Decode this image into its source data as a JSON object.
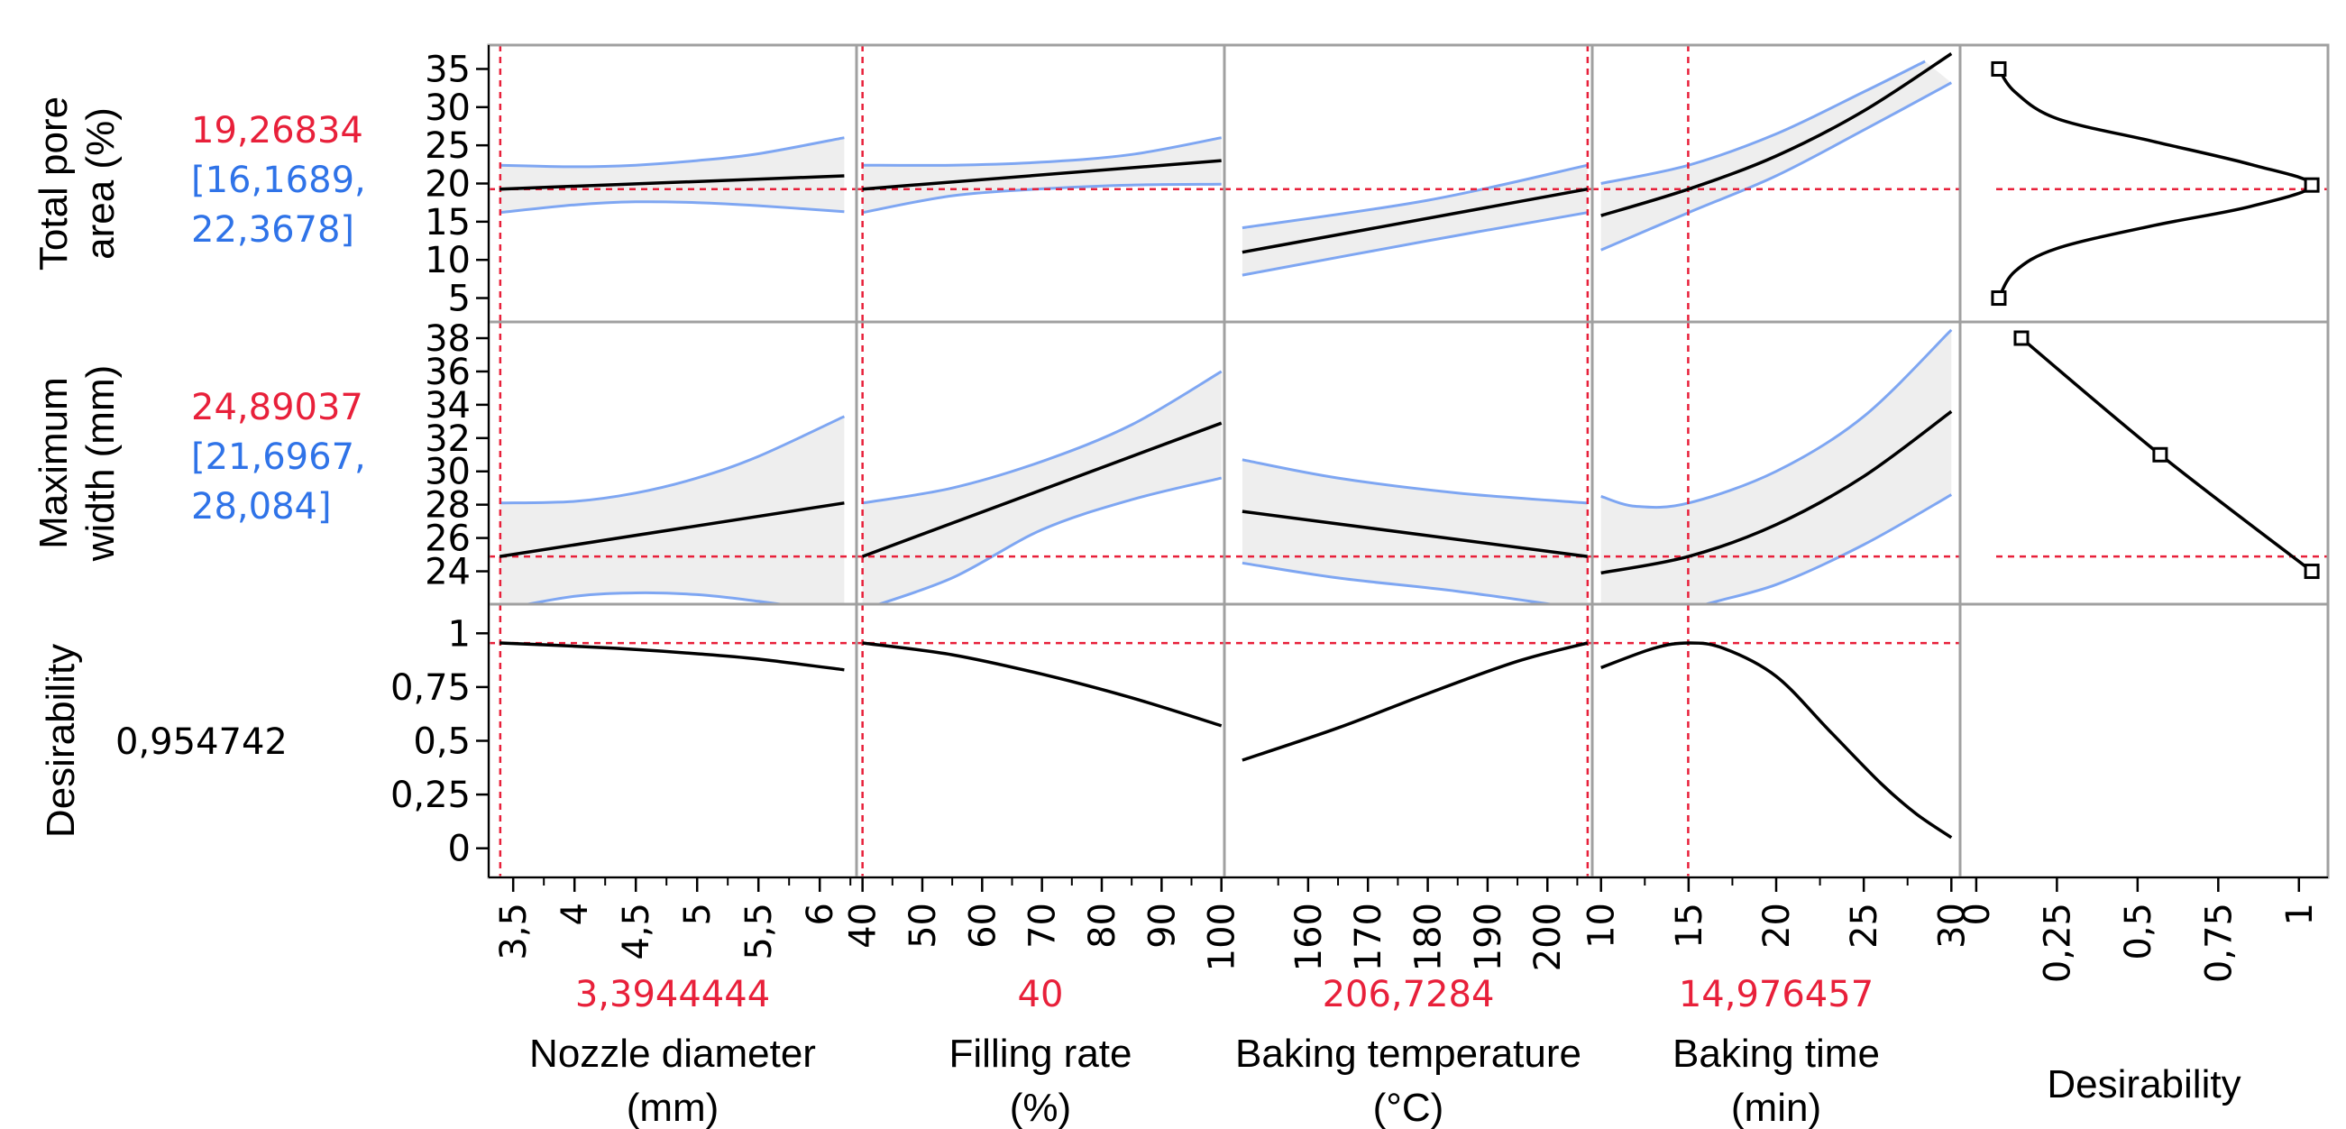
{
  "chart_data": {
    "type": "prediction_profiler",
    "colors": {
      "current_value": "#e8203a",
      "confidence": "#2f73e8",
      "band_line": "#7ea6f2",
      "band_fill": "#eeeeee",
      "grid_border": "#a0a0a0",
      "curve": "#000000"
    },
    "factors": [
      {
        "name_lines": [
          "Nozzle diameter",
          "(mm)"
        ],
        "current_label": "3,3944444",
        "current": 3.3944444,
        "range": [
          3.3,
          6.3
        ],
        "tick_values": [
          3.5,
          4,
          4.5,
          5,
          5.5,
          6
        ],
        "tick_labels": [
          "3,5",
          "4",
          "4,5",
          "5",
          "5,5",
          "6"
        ],
        "minor_ticks": [
          3.75,
          4.25,
          4.75,
          5.25,
          5.75,
          6.25
        ]
      },
      {
        "name_lines": [
          "Filling rate",
          "(%)"
        ],
        "current_label": "40",
        "current": 40,
        "range": [
          39,
          100.5
        ],
        "tick_values": [
          40,
          50,
          60,
          70,
          80,
          90,
          100
        ],
        "tick_labels": [
          "40",
          "50",
          "60",
          "70",
          "80",
          "90",
          "100"
        ],
        "minor_ticks": [
          45,
          55,
          65,
          75,
          85,
          95
        ]
      },
      {
        "name_lines": [
          "Baking temperature",
          "(°C)"
        ],
        "current_label": "206,7284",
        "current": 206.7284,
        "range": [
          146,
          207.5
        ],
        "tick_values": [
          160,
          170,
          180,
          190,
          200
        ],
        "tick_labels": [
          "160",
          "170",
          "180",
          "190",
          "200"
        ],
        "minor_ticks": [
          155,
          165,
          175,
          185,
          195,
          205
        ]
      },
      {
        "name_lines": [
          "Baking time",
          "(min)"
        ],
        "current_label": "14,976457",
        "current": 14.976457,
        "range": [
          9.5,
          30.5
        ],
        "tick_values": [
          10,
          15,
          20,
          25,
          30
        ],
        "tick_labels": [
          "10",
          "15",
          "20",
          "25",
          "30"
        ],
        "minor_ticks": [
          12.5,
          17.5,
          22.5,
          27.5
        ]
      }
    ],
    "responses": [
      {
        "name_lines": [
          "Total pore",
          "area (%)"
        ],
        "value_label": "19,26834",
        "ci_lines": [
          "[16,1689,",
          "22,3678]"
        ],
        "value": 19.26834,
        "ylim": [
          4,
          36
        ],
        "tick_values": [
          5,
          10,
          15,
          20,
          25,
          30,
          35
        ],
        "tick_labels": [
          "5",
          "10",
          "15",
          "20",
          "25",
          "30",
          "35"
        ],
        "traces": [
          {
            "pred": [
              [
                3.39,
                19.27
              ],
              [
                6.2,
                21.0
              ]
            ],
            "upper": [
              [
                3.39,
                22.4
              ],
              [
                4.0,
                22.2
              ],
              [
                4.5,
                22.4
              ],
              [
                5.0,
                23.0
              ],
              [
                5.5,
                23.9
              ],
              [
                6.2,
                26.0
              ]
            ],
            "lower": [
              [
                3.39,
                16.2
              ],
              [
                4.0,
                17.2
              ],
              [
                4.5,
                17.6
              ],
              [
                5.0,
                17.5
              ],
              [
                5.5,
                17.1
              ],
              [
                6.2,
                16.3
              ]
            ]
          },
          {
            "pred": [
              [
                40,
                19.27
              ],
              [
                100,
                23.0
              ]
            ],
            "upper": [
              [
                40,
                22.4
              ],
              [
                55,
                22.4
              ],
              [
                70,
                22.8
              ],
              [
                85,
                23.8
              ],
              [
                100,
                26.0
              ]
            ],
            "lower": [
              [
                40,
                16.2
              ],
              [
                55,
                18.4
              ],
              [
                70,
                19.3
              ],
              [
                85,
                19.8
              ],
              [
                100,
                19.9
              ]
            ]
          },
          {
            "pred": [
              [
                149,
                11.0
              ],
              [
                206.7,
                19.27
              ]
            ],
            "upper": [
              [
                149,
                14.2
              ],
              [
                180,
                17.8
              ],
              [
                206.7,
                22.4
              ]
            ],
            "lower": [
              [
                149,
                8.0
              ],
              [
                180,
                12.5
              ],
              [
                206.7,
                16.2
              ]
            ]
          },
          {
            "pred": [
              [
                10,
                15.8
              ],
              [
                15,
                19.27
              ],
              [
                20,
                23.6
              ],
              [
                25,
                29.5
              ],
              [
                30,
                37.0
              ]
            ],
            "upper": [
              [
                10,
                20.0
              ],
              [
                15,
                22.4
              ],
              [
                20,
                26.5
              ],
              [
                25,
                32.0
              ],
              [
                28.5,
                36.0
              ]
            ],
            "lower": [
              [
                10,
                11.3
              ],
              [
                15,
                16.2
              ],
              [
                20,
                21.0
              ],
              [
                25,
                27.0
              ],
              [
                30,
                33.2
              ]
            ]
          }
        ],
        "desirability": {
          "curve": [
            [
              0.07,
              35
            ],
            [
              0.12,
              32
            ],
            [
              0.25,
              28.5
            ],
            [
              0.55,
              25.5
            ],
            [
              0.85,
              22.5
            ],
            [
              1.04,
              19.8
            ],
            [
              0.85,
              17.0
            ],
            [
              0.55,
              14.5
            ],
            [
              0.25,
              11.5
            ],
            [
              0.12,
              8.5
            ],
            [
              0.07,
              5
            ]
          ],
          "markers": [
            [
              0.07,
              35
            ],
            [
              1.04,
              19.8
            ],
            [
              0.07,
              5
            ]
          ]
        }
      },
      {
        "name_lines": [
          "Maximum",
          "width (mm)"
        ],
        "value_label": "24,89037",
        "ci_lines": [
          "[21,6967,",
          "28,084]"
        ],
        "value": 24.89037,
        "ylim": [
          23,
          38
        ],
        "tick_values": [
          24,
          26,
          28,
          30,
          32,
          34,
          36,
          38
        ],
        "tick_labels": [
          "24",
          "26",
          "28",
          "30",
          "32",
          "34",
          "36",
          "38"
        ],
        "traces": [
          {
            "pred": [
              [
                3.39,
                24.89
              ],
              [
                6.2,
                28.1
              ]
            ],
            "upper": [
              [
                3.39,
                28.1
              ],
              [
                4.0,
                28.2
              ],
              [
                4.5,
                28.7
              ],
              [
                5.0,
                29.6
              ],
              [
                5.5,
                30.9
              ],
              [
                6.2,
                33.3
              ]
            ],
            "lower": [
              [
                3.39,
                21.7
              ],
              [
                4.0,
                22.5
              ],
              [
                4.5,
                22.7
              ],
              [
                5.0,
                22.6
              ],
              [
                5.5,
                22.2
              ],
              [
                6.2,
                21.5
              ]
            ]
          },
          {
            "pred": [
              [
                40,
                24.89
              ],
              [
                100,
                32.9
              ]
            ],
            "upper": [
              [
                40,
                28.1
              ],
              [
                55,
                29.0
              ],
              [
                70,
                30.6
              ],
              [
                85,
                32.8
              ],
              [
                100,
                36.0
              ]
            ],
            "lower": [
              [
                40,
                21.7
              ],
              [
                55,
                23.6
              ],
              [
                70,
                26.5
              ],
              [
                85,
                28.3
              ],
              [
                100,
                29.6
              ]
            ]
          },
          {
            "pred": [
              [
                149,
                27.6
              ],
              [
                206.7,
                24.89
              ]
            ],
            "upper": [
              [
                149,
                30.7
              ],
              [
                165,
                29.6
              ],
              [
                185,
                28.7
              ],
              [
                206.7,
                28.1
              ]
            ],
            "lower": [
              [
                149,
                24.5
              ],
              [
                165,
                23.6
              ],
              [
                185,
                22.8
              ],
              [
                206.7,
                21.7
              ]
            ]
          },
          {
            "pred": [
              [
                10,
                23.9
              ],
              [
                15,
                24.89
              ],
              [
                20,
                26.8
              ],
              [
                25,
                29.7
              ],
              [
                30,
                33.6
              ]
            ],
            "upper": [
              [
                10,
                28.5
              ],
              [
                12,
                27.9
              ],
              [
                15,
                28.1
              ],
              [
                20,
                30.0
              ],
              [
                25,
                33.3
              ],
              [
                30,
                38.5
              ]
            ],
            "lower": [
              [
                10,
                19.5
              ],
              [
                15,
                21.7
              ],
              [
                20,
                23.2
              ],
              [
                25,
                25.6
              ],
              [
                30,
                28.6
              ]
            ]
          }
        ],
        "desirability": {
          "curve": [
            [
              0.14,
              38
            ],
            [
              0.57,
              31
            ],
            [
              1.04,
              24
            ]
          ],
          "markers": [
            [
              0.14,
              38
            ],
            [
              0.57,
              31
            ],
            [
              1.04,
              24
            ]
          ]
        }
      },
      {
        "name_lines": [
          "Desirability"
        ],
        "value_label": "0,954742",
        "value": 0.954742,
        "ylim": [
          -0.06,
          1.06
        ],
        "tick_values": [
          0,
          0.25,
          0.5,
          0.75,
          1
        ],
        "tick_labels": [
          "0",
          "0,25",
          "0,5",
          "0,75",
          "1"
        ],
        "traces": [
          {
            "pred": [
              [
                3.39,
                0.955
              ],
              [
                4.0,
                0.94
              ],
              [
                4.5,
                0.925
              ],
              [
                5.0,
                0.905
              ],
              [
                5.5,
                0.88
              ],
              [
                6.2,
                0.83
              ]
            ]
          },
          {
            "pred": [
              [
                40,
                0.955
              ],
              [
                55,
                0.9
              ],
              [
                70,
                0.81
              ],
              [
                85,
                0.7
              ],
              [
                100,
                0.57
              ]
            ]
          },
          {
            "pred": [
              [
                149,
                0.41
              ],
              [
                165,
                0.56
              ],
              [
                180,
                0.72
              ],
              [
                195,
                0.87
              ],
              [
                206.7,
                0.955
              ]
            ]
          },
          {
            "pred": [
              [
                10,
                0.84
              ],
              [
                13,
                0.93
              ],
              [
                15,
                0.955
              ],
              [
                17,
                0.93
              ],
              [
                20,
                0.8
              ],
              [
                23,
                0.55
              ],
              [
                26,
                0.3
              ],
              [
                28,
                0.16
              ],
              [
                30,
                0.05
              ]
            ]
          }
        ]
      }
    ],
    "desirability_axis": {
      "title": "Desirability",
      "range": [
        -0.05,
        1.09
      ],
      "tick_values": [
        0,
        0.25,
        0.5,
        0.75,
        1
      ],
      "tick_labels": [
        "0",
        "0,25",
        "0,5",
        "0,75",
        "1"
      ]
    }
  }
}
